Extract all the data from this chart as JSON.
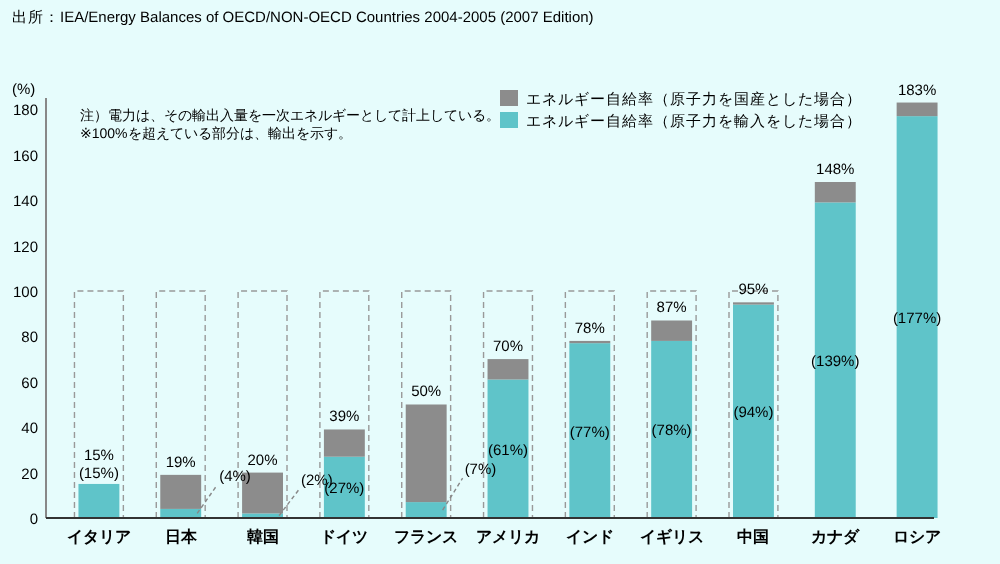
{
  "chart_data": {
    "type": "bar",
    "stacked": true,
    "ylabel": "(%)",
    "annotations": [
      "出所：IEA/Energy Balances of OECD/NON-OECD Countries 2004-2005 (2007 Edition)",
      "注）電力は、その輸出入量を一次エネルギーとして計上している。",
      "※100%を超えている部分は、輸出を示す。"
    ],
    "categories": [
      "イタリア",
      "日本",
      "韓国",
      "ドイツ",
      "フランス",
      "アメリカ",
      "インド",
      "イギリス",
      "中国",
      "カナダ",
      "ロシア"
    ],
    "series": [
      {
        "name": "エネルギー自給率（原子力を輸入をした場合）",
        "color": "#5fc4c9",
        "values": [
          15,
          4,
          2,
          27,
          7,
          61,
          77,
          78,
          94,
          139,
          177
        ],
        "value_labels": [
          "(15%)",
          "(4%)",
          "(2%)",
          "(27%)",
          "(7%)",
          "(61%)",
          "(77%)",
          "(78%)",
          "(94%)",
          "(139%)",
          "(177%)"
        ]
      },
      {
        "name": "エネルギー自給率（原子力を国産とした場合）",
        "color": "#8c8c8c",
        "values": [
          0,
          15,
          18,
          12,
          43,
          9,
          1,
          9,
          1,
          9,
          6
        ]
      }
    ],
    "totals": [
      "15%",
      "19%",
      "20%",
      "39%",
      "50%",
      "70%",
      "78%",
      "87%",
      "95%",
      "148%",
      "183%"
    ],
    "ylim": [
      0,
      185
    ],
    "yticks": [
      0,
      20,
      40,
      60,
      80,
      100,
      120,
      140,
      160,
      180
    ],
    "legend": "top right",
    "grid": false
  }
}
